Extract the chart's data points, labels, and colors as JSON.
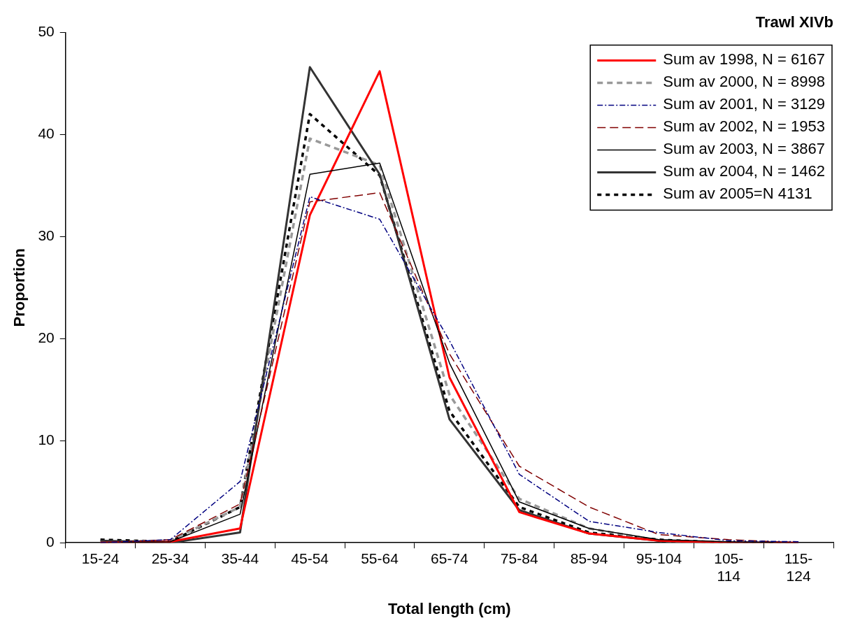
{
  "chart_data": {
    "type": "line",
    "title": "Trawl XIVb",
    "xlabel": "Total length (cm)",
    "ylabel": "Proportion",
    "categories": [
      "15-24",
      "25-34",
      "35-44",
      "45-54",
      "55-64",
      "65-74",
      "75-84",
      "85-94",
      "95-104",
      "105-114",
      "115-124"
    ],
    "series": [
      {
        "name": "Sum av 1998, N = 6167",
        "color": "#ff0000",
        "line_style": "solid",
        "values": [
          0,
          0.1,
          1.4,
          32.1,
          46.2,
          16.2,
          3.0,
          0.9,
          0.2,
          0,
          0
        ]
      },
      {
        "name": "Sum av 2000, N = 8998",
        "color": "#999999",
        "line_style": "dashed",
        "values": [
          0.1,
          0.2,
          3.5,
          39.6,
          37.0,
          14.5,
          4.3,
          1.4,
          0.2,
          0,
          0
        ]
      },
      {
        "name": "Sum av 2001, N = 3129",
        "color": "#000080",
        "line_style": "dashed",
        "values": [
          0,
          0.3,
          6.0,
          33.9,
          31.7,
          19.8,
          6.7,
          2.1,
          1.0,
          0.2,
          0.1
        ]
      },
      {
        "name": "Sum av 2002, N = 1953",
        "color": "#800000",
        "line_style": "dashed",
        "values": [
          0,
          0.3,
          3.8,
          33.4,
          34.3,
          18.5,
          7.5,
          3.5,
          0.8,
          0.3,
          0
        ]
      },
      {
        "name": "Sum av 2003, N = 3867",
        "color": "#000000",
        "line_style": "solid",
        "values": [
          0,
          0.1,
          2.8,
          36.1,
          37.2,
          17.6,
          4.0,
          1.4,
          0.3,
          0.1,
          0
        ]
      },
      {
        "name": "Sum av 2004, N = 1462",
        "color": "#333333",
        "line_style": "solid",
        "values": [
          0.2,
          0,
          1.0,
          46.6,
          36.1,
          12.1,
          3.2,
          0.9,
          0.2,
          0,
          0
        ]
      },
      {
        "name": "Sum av 2005=N 4131",
        "color": "#000000",
        "line_style": "dotted",
        "values": [
          0.3,
          0.1,
          3.5,
          42.0,
          36.0,
          12.9,
          3.5,
          1.0,
          0.3,
          0,
          0
        ]
      }
    ],
    "ylim": [
      0,
      50
    ],
    "yticks": [
      0,
      10,
      20,
      30,
      40,
      50
    ],
    "grid": false,
    "legend": "top right",
    "marker": "none"
  }
}
